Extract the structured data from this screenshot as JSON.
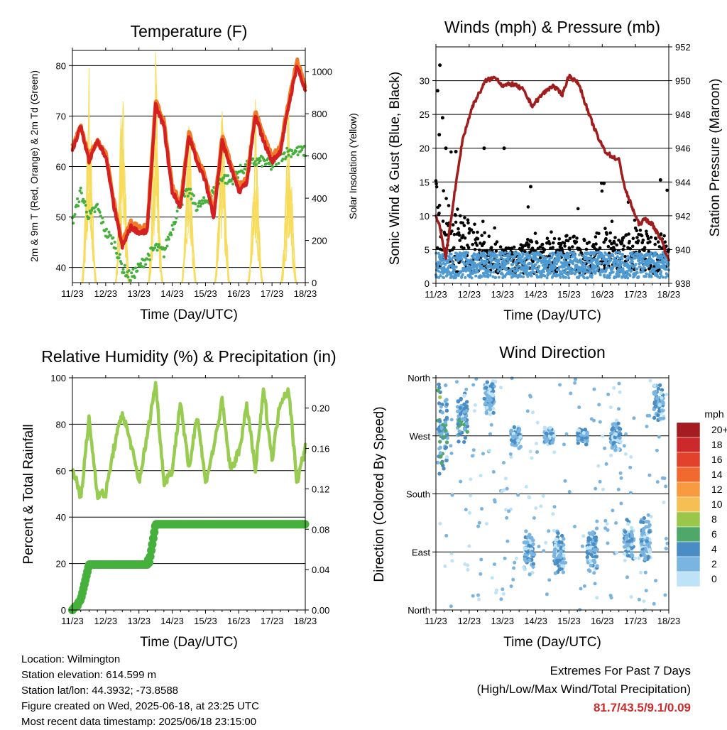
{
  "days": [
    "11/23",
    "12/23",
    "13/23",
    "14/23",
    "15/23",
    "16/23",
    "17/23",
    "18/23"
  ],
  "xlabel": "Time (Day/UTC)",
  "temperature": {
    "title": "Temperature (F)",
    "ylabel_left": "2m & 9m T (Red, Orange) & 2m Td (Green)",
    "ylabel_right": "Solar Insolation (Yellow)"
  },
  "winds": {
    "title": "Winds (mph) & Pressure (mb)",
    "ylabel_left": "Sonic Wind & Gust (Blue, Black)",
    "ylabel_right": "Station Pressure (Maroon)"
  },
  "humidity": {
    "title": "Relative Humidity (%) & Precipitation (in)",
    "ylabel_left": "Percent & Total Rainfall"
  },
  "direction": {
    "title": "Wind Direction",
    "ylabel_left": "Direction (Colored By Speed)",
    "yticks": [
      "North",
      "West",
      "South",
      "East",
      "North"
    ],
    "legend_title": "mph",
    "legend_labels": [
      "20+",
      "18",
      "16",
      "14",
      "12",
      "10",
      "8",
      "6",
      "4",
      "2",
      "0"
    ],
    "legend_colors": [
      "#a51c20",
      "#cc2a2a",
      "#e2422b",
      "#f06a30",
      "#f79a40",
      "#f6bf54",
      "#9ac64a",
      "#4fa86a",
      "#4a8cc4",
      "#7ab4e0",
      "#bfe3f6"
    ]
  },
  "info": {
    "location": "Location: Wilmington",
    "elevation": "Station elevation: 614.599 m",
    "latlon": "Station lat/lon: 44.3932; -73.8588",
    "created": "Figure created on Wed, 2025-06-18, at 23:25 UTC",
    "recent": "Most recent data timestamp: 2025/06/18 23:15:00"
  },
  "extremes": {
    "line1": "Extremes For Past 7 Days",
    "line2": "(High/Low/Max Wind/Total Precipitation)",
    "values": "81.7/43.5/9.1/0.09"
  },
  "colors": {
    "temp_2m": "#d42020",
    "temp_9m": "#f07a28",
    "dewpoint": "#46b03c",
    "solar": "#f7dc5c",
    "gust": "#000000",
    "wind": "#4e9ad2",
    "pressure": "#a11d1d",
    "rh": "#97cc50",
    "precip": "#46b03c"
  },
  "chart_data": [
    {
      "type": "line",
      "title": "Temperature (F)",
      "xlabel": "Time (Day/UTC)",
      "ylabel": "2m & 9m T (Red, Orange) & 2m Td (Green)",
      "ylabel_right": "Solar Insolation (Yellow)",
      "ylim": [
        37,
        83
      ],
      "ylim_right": [
        0,
        1100
      ],
      "yticks": [
        40,
        50,
        60,
        70,
        80
      ],
      "yticks_right": [
        0,
        200,
        400,
        600,
        800,
        1000
      ],
      "x": [
        11.0,
        11.25,
        11.5,
        11.75,
        12.0,
        12.25,
        12.5,
        12.75,
        13.0,
        13.25,
        13.5,
        13.75,
        14.0,
        14.25,
        14.5,
        14.75,
        15.0,
        15.25,
        15.5,
        15.75,
        16.0,
        16.25,
        16.5,
        16.75,
        17.0,
        17.25,
        17.5,
        17.75,
        18.0
      ],
      "series": [
        {
          "name": "2m T",
          "values": [
            63,
            68,
            61,
            65,
            62,
            52,
            44,
            48,
            47,
            47,
            72,
            68,
            55,
            52,
            66,
            61,
            57,
            50,
            65,
            60,
            55,
            57,
            70,
            65,
            61,
            63,
            72,
            80,
            75
          ]
        },
        {
          "name": "9m T",
          "values": [
            64,
            68,
            62,
            65,
            63,
            53,
            45,
            49,
            48,
            48,
            73,
            69,
            56,
            53,
            67,
            62,
            58,
            51,
            66,
            61,
            56,
            58,
            71,
            66,
            62,
            64,
            73,
            81,
            76
          ]
        },
        {
          "name": "2m Td",
          "values": [
            49,
            55,
            50,
            52,
            47,
            45,
            40,
            38,
            40,
            42,
            44,
            43,
            48,
            53,
            55,
            52,
            53,
            55,
            58,
            57,
            59,
            60,
            61,
            61,
            60,
            62,
            63,
            63,
            63
          ]
        },
        {
          "name": "Solar Insolation",
          "axis": "right",
          "x": [
            11.3,
            11.5,
            11.7,
            12.3,
            12.5,
            12.7,
            13.3,
            13.5,
            13.7,
            14.3,
            14.5,
            14.7,
            15.3,
            15.5,
            15.7,
            16.3,
            16.5,
            16.7,
            17.3,
            17.5,
            17.7
          ],
          "values": [
            50,
            1000,
            50,
            60,
            1050,
            60,
            70,
            1050,
            70,
            60,
            1000,
            60,
            60,
            980,
            60,
            60,
            900,
            60,
            60,
            920,
            60
          ]
        }
      ]
    },
    {
      "type": "scatter",
      "title": "Winds (mph) & Pressure (mb)",
      "xlabel": "Time (Day/UTC)",
      "ylabel": "Sonic Wind & Gust (Blue, Black)",
      "ylabel_right": "Station Pressure (Maroon)",
      "ylim": [
        0,
        35
      ],
      "ylim_right": [
        938,
        952
      ],
      "yticks": [
        0,
        5,
        10,
        15,
        20,
        25,
        30
      ],
      "yticks_right": [
        938,
        940,
        942,
        944,
        946,
        948,
        950,
        952
      ],
      "series": [
        {
          "name": "Station Pressure",
          "axis": "right",
          "type": "line",
          "x": [
            11.0,
            11.1,
            11.3,
            11.5,
            11.8,
            12.1,
            12.5,
            12.8,
            13.0,
            13.3,
            13.6,
            13.9,
            14.2,
            14.5,
            14.8,
            15.0,
            15.3,
            15.6,
            15.9,
            16.1,
            16.3,
            16.5,
            16.7,
            16.9,
            17.1,
            17.3,
            17.5,
            17.8,
            18.0
          ],
          "values": [
            942,
            941.5,
            939.5,
            942.5,
            946.5,
            948.5,
            950,
            950.2,
            949.7,
            949.8,
            949.5,
            948.5,
            949.2,
            949.7,
            949.2,
            950.3,
            949.8,
            948,
            946.5,
            945.8,
            945.5,
            945.3,
            943.5,
            942.5,
            941.5,
            941.8,
            941.5,
            940.5,
            939.3
          ]
        },
        {
          "name": "Gust",
          "summary": "scatter 0-10 mph, peaks near 32 mph on 11/23, 20 mph on 12/23, 15 mph on 17/23"
        },
        {
          "name": "Sonic Wind",
          "summary": "dense band 1-5 mph throughout"
        }
      ]
    },
    {
      "type": "line",
      "title": "Relative Humidity (%) & Precipitation (in)",
      "xlabel": "Time (Day/UTC)",
      "ylabel": "Percent & Total Rainfall",
      "ylim": [
        0,
        100
      ],
      "ylim_right": [
        0,
        0.23
      ],
      "yticks": [
        0,
        20,
        40,
        60,
        80,
        100
      ],
      "yticks_right": [
        0.0,
        0.04,
        0.08,
        0.12,
        0.16,
        0.2
      ],
      "x": [
        11.0,
        11.25,
        11.5,
        11.75,
        12.0,
        12.25,
        12.5,
        12.75,
        13.0,
        13.25,
        13.5,
        13.75,
        14.0,
        14.25,
        14.5,
        14.75,
        15.0,
        15.25,
        15.5,
        15.75,
        16.0,
        16.25,
        16.5,
        16.75,
        17.0,
        17.25,
        17.5,
        17.75,
        18.0
      ],
      "series": [
        {
          "name": "RH",
          "values": [
            62,
            48,
            82,
            50,
            50,
            70,
            85,
            72,
            55,
            75,
            98,
            55,
            60,
            90,
            60,
            85,
            55,
            70,
            90,
            60,
            68,
            88,
            60,
            95,
            65,
            90,
            95,
            55,
            70
          ]
        },
        {
          "name": "Total Precipitation",
          "axis": "right",
          "values": [
            0,
            0.01,
            0.045,
            0.045,
            0.045,
            0.045,
            0.045,
            0.045,
            0.045,
            0.045,
            0.085,
            0.085,
            0.085,
            0.085,
            0.085,
            0.085,
            0.085,
            0.085,
            0.085,
            0.085,
            0.085,
            0.085,
            0.085,
            0.085,
            0.085,
            0.085,
            0.085,
            0.085,
            0.085
          ]
        }
      ]
    },
    {
      "type": "scatter",
      "title": "Wind Direction",
      "xlabel": "Time (Day/UTC)",
      "ylabel": "Direction (Colored By Speed)",
      "yticks": [
        "North",
        "West",
        "South",
        "East",
        "North"
      ],
      "ylim": [
        0,
        360
      ],
      "colorbar": {
        "title": "mph",
        "labels": [
          "20+",
          "18",
          "16",
          "14",
          "12",
          "10",
          "8",
          "6",
          "4",
          "2",
          "0"
        ]
      },
      "clusters": [
        {
          "day": 11.2,
          "dir": 270,
          "spread": 90
        },
        {
          "day": 11.8,
          "dir": 300,
          "spread": 50
        },
        {
          "day": 12.6,
          "dir": 330,
          "spread": 35
        },
        {
          "day": 13.4,
          "dir": 270,
          "spread": 20
        },
        {
          "day": 13.8,
          "dir": 90,
          "spread": 40
        },
        {
          "day": 14.4,
          "dir": 270,
          "spread": 15
        },
        {
          "day": 14.7,
          "dir": 90,
          "spread": 40
        },
        {
          "day": 15.4,
          "dir": 270,
          "spread": 15
        },
        {
          "day": 15.7,
          "dir": 90,
          "spread": 40
        },
        {
          "day": 16.4,
          "dir": 270,
          "spread": 25
        },
        {
          "day": 16.8,
          "dir": 110,
          "spread": 35
        },
        {
          "day": 17.3,
          "dir": 110,
          "spread": 45
        },
        {
          "day": 17.7,
          "dir": 320,
          "spread": 30
        }
      ]
    }
  ]
}
